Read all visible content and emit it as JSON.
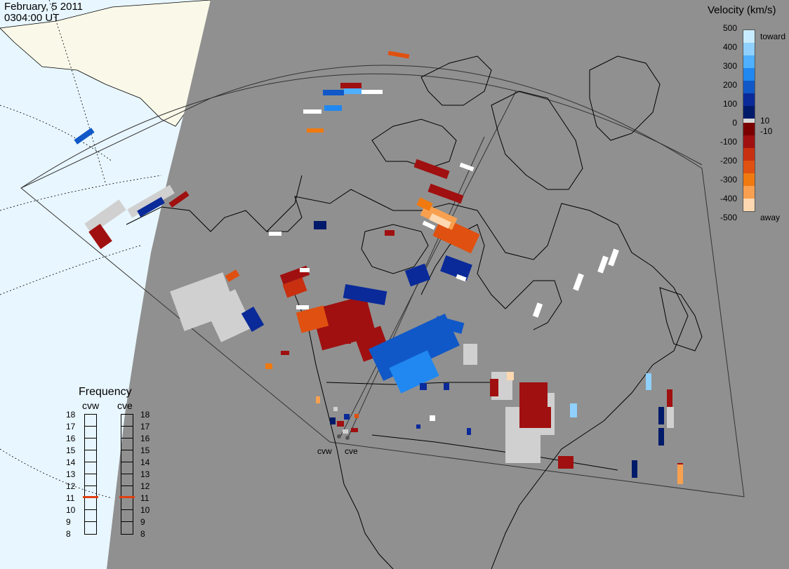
{
  "header": {
    "date": "February, 5 2011",
    "time": "0304:00 UT"
  },
  "legend": {
    "title": "Velocity (km/s)",
    "ticks": [
      "500",
      "400",
      "300",
      "200",
      "100",
      "10",
      "0",
      "-10",
      "-100",
      "-200",
      "-300",
      "-400",
      "-500"
    ],
    "toward_label": "toward",
    "away_label": "away",
    "colors": {
      "toward": [
        "#c8ecff",
        "#8fd0ff",
        "#4fb0ff",
        "#2088f0",
        "#1058c8",
        "#0a2a9a",
        "#001a6a"
      ],
      "zero": "#d8d8d8",
      "away": [
        "#7a0000",
        "#a01010",
        "#c83010",
        "#e05010",
        "#f07a10",
        "#f8a050",
        "#fdd8b0"
      ]
    }
  },
  "radars": [
    {
      "name": "cvw",
      "frequency_mhz": 11
    },
    {
      "name": "cve",
      "frequency_mhz": 11
    }
  ],
  "frequency": {
    "title": "Frequency",
    "scale": [
      "18",
      "17",
      "16",
      "15",
      "14",
      "13",
      "12",
      "11",
      "10",
      "9",
      "8"
    ],
    "marker_color": "#e04010"
  },
  "map": {
    "night_color": "#909090",
    "ocean_color": "#e8f6ff",
    "land_color": "#faf8e8",
    "ground_scatter_color": "#d0d0d0"
  }
}
